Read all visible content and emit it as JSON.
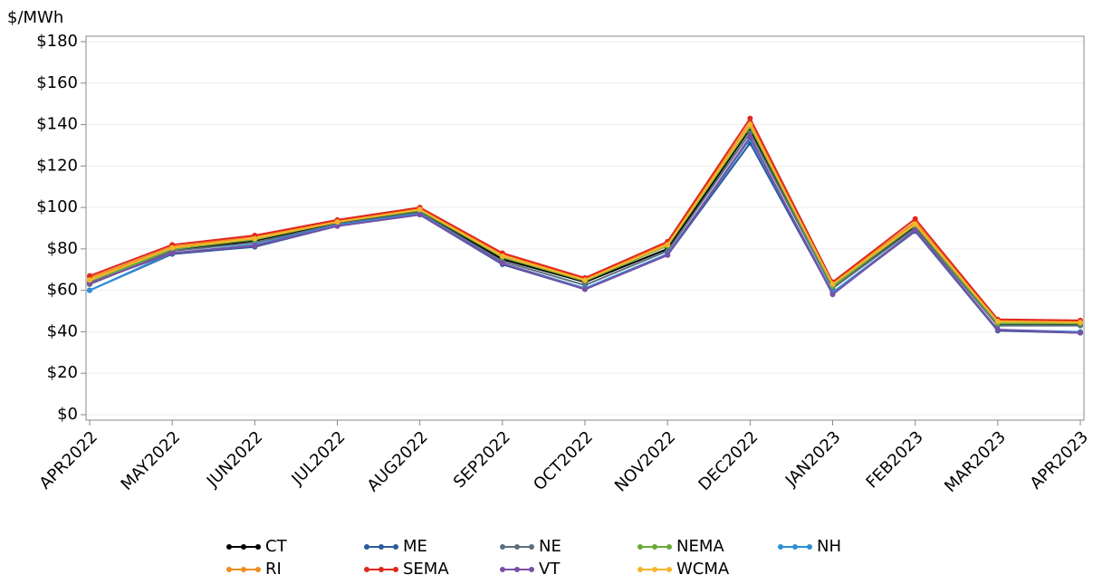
{
  "chart_data": {
    "type": "line",
    "y_axis_label": "$/MWh",
    "categories": [
      "APR2022",
      "MAY2022",
      "JUN2022",
      "JUL2022",
      "AUG2022",
      "SEP2022",
      "OCT2022",
      "NOV2022",
      "DEC2022",
      "JAN2023",
      "FEB2023",
      "MAR2023",
      "APR2023"
    ],
    "ylim": [
      0,
      180
    ],
    "yticks": [
      {
        "value": 0,
        "label": "$0"
      },
      {
        "value": 20,
        "label": "$20"
      },
      {
        "value": 40,
        "label": "$40"
      },
      {
        "value": 60,
        "label": "$60"
      },
      {
        "value": 80,
        "label": "$80"
      },
      {
        "value": 100,
        "label": "$100"
      },
      {
        "value": 120,
        "label": "$120"
      },
      {
        "value": 140,
        "label": "$140"
      },
      {
        "value": 160,
        "label": "$160"
      },
      {
        "value": 180,
        "label": "$180"
      }
    ],
    "grid": true,
    "series": [
      {
        "name": "CT",
        "color": "#000000",
        "values": [
          63,
          79,
          84,
          92.5,
          98,
          75,
          64,
          80,
          138,
          61,
          91,
          43.5,
          43.5
        ]
      },
      {
        "name": "ME",
        "color": "#2a5b9c",
        "values": [
          60,
          77.5,
          81,
          91,
          96.5,
          72.5,
          60.5,
          77,
          131,
          58.5,
          88.5,
          40.5,
          39.5
        ]
      },
      {
        "name": "NE",
        "color": "#5b6f7f",
        "values": [
          63,
          79,
          83,
          92,
          97.5,
          74,
          62.5,
          79,
          136,
          61,
          90,
          43,
          43
        ]
      },
      {
        "name": "NEMA",
        "color": "#6aaa3a",
        "values": [
          64,
          80,
          84.5,
          93,
          98.5,
          76,
          64.5,
          81.5,
          139,
          62,
          91.5,
          44,
          44
        ]
      },
      {
        "name": "NH",
        "color": "#2d8fd6",
        "values": [
          60,
          78,
          82,
          91.5,
          97,
          73,
          61,
          77.5,
          133,
          59,
          89,
          41,
          40
        ]
      },
      {
        "name": "RI",
        "color": "#f28c1e",
        "values": [
          66,
          81,
          86,
          93.5,
          99.5,
          77.5,
          65.5,
          83,
          141,
          63.5,
          93,
          45.5,
          45
        ]
      },
      {
        "name": "SEMA",
        "color": "#e0281e",
        "values": [
          67,
          82,
          86.5,
          94,
          100,
          78,
          66,
          83.5,
          143,
          64,
          94.5,
          46,
          45.5
        ]
      },
      {
        "name": "VT",
        "color": "#7b4fa6",
        "values": [
          63.5,
          78,
          81.5,
          91,
          96.5,
          73,
          60.5,
          77,
          134,
          58,
          89,
          41,
          39.5
        ]
      },
      {
        "name": "WCMA",
        "color": "#f5b52a",
        "values": [
          65,
          80.5,
          85,
          93,
          99,
          76.5,
          65,
          82,
          140,
          63,
          92,
          45,
          44.5
        ]
      }
    ]
  }
}
